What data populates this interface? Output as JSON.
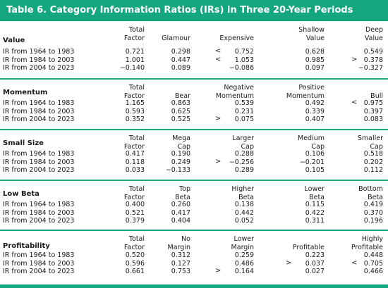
{
  "title": "Table 6. Category Information Ratios (IRs) in Three 20-Year Periods",
  "colors": {
    "accent": "#14a77f"
  },
  "sections": [
    {
      "name": "Value",
      "headers": [
        [
          "Total",
          "Factor"
        ],
        [
          "",
          "Glamour"
        ],
        [
          "",
          "Expensive"
        ],
        [
          "Shallow",
          "Value"
        ],
        [
          "Deep",
          "Value"
        ]
      ],
      "rows": [
        {
          "label": "IR from 1964 to 1983",
          "values": [
            "0.721",
            "0.298",
            "0.752",
            "0.628",
            "0.549"
          ],
          "marks": [
            "",
            "",
            "<",
            "",
            ""
          ]
        },
        {
          "label": "IR from 1984 to 2003",
          "values": [
            "1.001",
            "0.447",
            "1.053",
            "0.985",
            "0.378"
          ],
          "marks": [
            "",
            "",
            "<",
            "",
            ">"
          ]
        },
        {
          "label": "IR from 2004 to 2023",
          "values": [
            "−0.140",
            "0.089",
            "−0.086",
            "0.097",
            "−0.327"
          ],
          "marks": [
            "",
            "",
            "",
            "",
            ""
          ]
        }
      ]
    },
    {
      "name": "Momentum",
      "headers": [
        [
          "Total",
          "Factor"
        ],
        [
          "",
          "Bear"
        ],
        [
          "Negative",
          "Momentum"
        ],
        [
          "Positive",
          "Momentum"
        ],
        [
          "",
          "Bull"
        ]
      ],
      "rows": [
        {
          "label": "IR from 1964 to 1983",
          "values": [
            "1.165",
            "0.863",
            "0.539",
            "0.492",
            "0.975"
          ],
          "marks": [
            "",
            "",
            "",
            "",
            "<"
          ]
        },
        {
          "label": "IR from 1984 to 2003",
          "values": [
            "0.593",
            "0.625",
            "0.231",
            "0.339",
            "0.397"
          ],
          "marks": [
            "",
            "",
            "",
            "",
            ""
          ]
        },
        {
          "label": "IR from 2004 to 2023",
          "values": [
            "0.352",
            "0.525",
            "0.075",
            "0.407",
            "0.083"
          ],
          "marks": [
            "",
            "",
            ">",
            "",
            ""
          ]
        }
      ]
    },
    {
      "name": "Small Size",
      "headers": [
        [
          "Total",
          "Factor"
        ],
        [
          "Mega",
          "Cap"
        ],
        [
          "Larger",
          "Cap"
        ],
        [
          "Medium",
          "Cap"
        ],
        [
          "Smaller",
          "Cap"
        ]
      ],
      "rows": [
        {
          "label": "IR from 1964 to 1983",
          "values": [
            "0.417",
            "0.190",
            "0.288",
            "0.106",
            "0.518"
          ],
          "marks": [
            "",
            "",
            "",
            "",
            ""
          ]
        },
        {
          "label": "IR from 1984 to 2003",
          "values": [
            "0.118",
            "0.249",
            "−0.256",
            "−0.201",
            "0.202"
          ],
          "marks": [
            "",
            "",
            ">",
            "",
            ""
          ]
        },
        {
          "label": "IR from 2004 to 2023",
          "values": [
            "0.033",
            "−0.133",
            "0.289",
            "0.105",
            "0.112"
          ],
          "marks": [
            "",
            "",
            "",
            "",
            ""
          ]
        }
      ]
    },
    {
      "name": "Low Beta",
      "headers": [
        [
          "Total",
          "Factor"
        ],
        [
          "Top",
          "Beta"
        ],
        [
          "Higher",
          "Beta"
        ],
        [
          "Lower",
          "Beta"
        ],
        [
          "Bottom",
          "Beta"
        ]
      ],
      "rows": [
        {
          "label": "IR from 1964 to 1983",
          "values": [
            "0.400",
            "0.260",
            "0.138",
            "0.115",
            "0.419"
          ],
          "marks": [
            "",
            "",
            "",
            "",
            ""
          ]
        },
        {
          "label": "IR from 1984 to 2003",
          "values": [
            "0.521",
            "0.417",
            "0.442",
            "0.422",
            "0.370"
          ],
          "marks": [
            "",
            "",
            "",
            "",
            ""
          ]
        },
        {
          "label": "IR from 2004 to 2023",
          "values": [
            "0.379",
            "0.404",
            "0.052",
            "0.311",
            "0.196"
          ],
          "marks": [
            "",
            "",
            "",
            "",
            ""
          ]
        }
      ]
    },
    {
      "name": "Profitability",
      "headers": [
        [
          "Total",
          "Factor"
        ],
        [
          "No",
          "Margin"
        ],
        [
          "Lower",
          "Margin"
        ],
        [
          "",
          "Profitable"
        ],
        [
          "Highly",
          "Profitable"
        ]
      ],
      "rows": [
        {
          "label": "IR from 1964 to 1983",
          "values": [
            "0.520",
            "0.312",
            "0.259",
            "0.223",
            "0.448"
          ],
          "marks": [
            "",
            "",
            "",
            "",
            ""
          ]
        },
        {
          "label": "IR from 1984 to 2003",
          "values": [
            "0.596",
            "0.127",
            "0.486",
            "0.037",
            "0.705"
          ],
          "marks": [
            "",
            "",
            "",
            ">",
            "<"
          ]
        },
        {
          "label": "IR from 2004 to 2023",
          "values": [
            "0.661",
            "0.753",
            "0.164",
            "0.027",
            "0.466"
          ],
          "marks": [
            "",
            "",
            ">",
            "",
            ""
          ]
        }
      ]
    }
  ]
}
